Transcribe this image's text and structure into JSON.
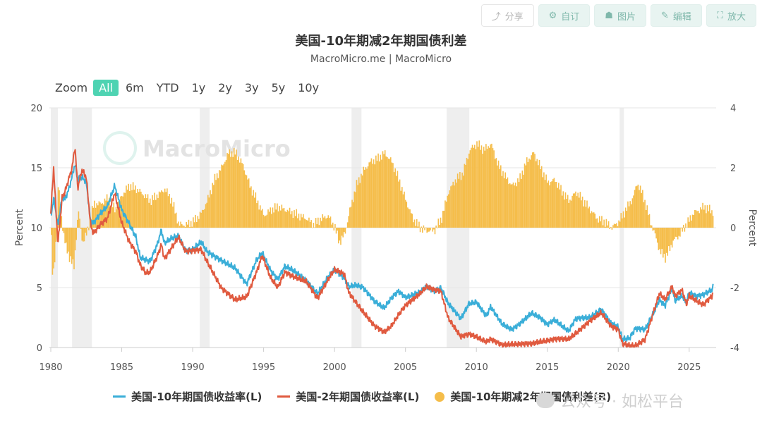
{
  "toolbar": {
    "buttons": [
      {
        "label": "分享",
        "icon": "share-icon"
      },
      {
        "label": "自订",
        "icon": "gear-icon"
      },
      {
        "label": "图片",
        "icon": "user-icon"
      },
      {
        "label": "编辑",
        "icon": "pencil-icon"
      },
      {
        "label": "放大",
        "icon": "expand-icon"
      }
    ]
  },
  "zoom": {
    "label": "Zoom",
    "options": [
      "All",
      "6m",
      "YTD",
      "1y",
      "2y",
      "3y",
      "5y",
      "10y"
    ],
    "active": "All"
  },
  "watermark": {
    "logo_text": "MacroMicro",
    "platform_text": "公众号 · 如松平台"
  },
  "colors": {
    "ten_year": "#3aaed8",
    "two_year": "#e05a3f",
    "spread": "#f5bd4a",
    "recession": "#eeeeee",
    "accent": "#4ed3b2"
  },
  "chart_data": {
    "type": "line",
    "title": "美国-10年期减2年期国债利差",
    "subtitle": "MacroMicro.me | MacroMicro",
    "xlabel": "",
    "ylabel_left": "Percent",
    "ylabel_right": "Percent",
    "xlim": [
      1979.9,
      2026.9
    ],
    "ylim_left": [
      0,
      20
    ],
    "ylim_right": [
      -4,
      4
    ],
    "x_ticks": [
      "1980",
      "1985",
      "1990",
      "1995",
      "2000",
      "2005",
      "2010",
      "2015",
      "2020",
      "2025"
    ],
    "y_ticks_left": [
      "0",
      "5",
      "10",
      "15",
      "20"
    ],
    "y_ticks_right": [
      "-4",
      "-2",
      "0",
      "2",
      "4"
    ],
    "grid": true,
    "legend": "bottom",
    "recessions": [
      [
        1980.0,
        1980.5
      ],
      [
        1981.5,
        1982.9
      ],
      [
        1990.5,
        1991.2
      ],
      [
        2001.2,
        2001.9
      ],
      [
        2007.9,
        2009.5
      ],
      [
        2020.1,
        2020.4
      ]
    ],
    "series": [
      {
        "name": "美国-10年期国债收益率(L)",
        "axis": "left",
        "points": [
          [
            1980.0,
            10.8
          ],
          [
            1980.2,
            12.5
          ],
          [
            1980.5,
            10.2
          ],
          [
            1980.8,
            12.6
          ],
          [
            1981.0,
            12.4
          ],
          [
            1981.3,
            13.3
          ],
          [
            1981.7,
            15.3
          ],
          [
            1981.9,
            14.0
          ],
          [
            1982.2,
            14.2
          ],
          [
            1982.5,
            13.8
          ],
          [
            1982.8,
            10.6
          ],
          [
            1983.0,
            10.4
          ],
          [
            1983.5,
            11.2
          ],
          [
            1984.0,
            11.8
          ],
          [
            1984.5,
            13.5
          ],
          [
            1985.0,
            11.5
          ],
          [
            1985.5,
            10.4
          ],
          [
            1986.0,
            9.2
          ],
          [
            1986.3,
            7.5
          ],
          [
            1986.7,
            7.3
          ],
          [
            1987.0,
            7.2
          ],
          [
            1987.5,
            8.6
          ],
          [
            1987.8,
            9.8
          ],
          [
            1988.0,
            8.7
          ],
          [
            1988.5,
            9.1
          ],
          [
            1989.0,
            9.3
          ],
          [
            1989.5,
            8.1
          ],
          [
            1990.0,
            8.2
          ],
          [
            1990.6,
            8.8
          ],
          [
            1991.0,
            8.0
          ],
          [
            1992.0,
            7.3
          ],
          [
            1993.0,
            6.6
          ],
          [
            1993.8,
            5.3
          ],
          [
            1994.5,
            7.3
          ],
          [
            1994.9,
            7.9
          ],
          [
            1995.5,
            6.4
          ],
          [
            1996.0,
            5.7
          ],
          [
            1996.5,
            6.8
          ],
          [
            1997.0,
            6.5
          ],
          [
            1998.0,
            5.6
          ],
          [
            1998.8,
            4.5
          ],
          [
            1999.5,
            5.8
          ],
          [
            2000.0,
            6.5
          ],
          [
            2000.7,
            5.8
          ],
          [
            2001.0,
            5.1
          ],
          [
            2001.5,
            5.2
          ],
          [
            2002.0,
            5.0
          ],
          [
            2002.8,
            3.9
          ],
          [
            2003.5,
            3.3
          ],
          [
            2004.0,
            4.1
          ],
          [
            2004.5,
            4.7
          ],
          [
            2005.0,
            4.2
          ],
          [
            2006.0,
            4.6
          ],
          [
            2006.5,
            5.1
          ],
          [
            2007.0,
            4.7
          ],
          [
            2007.5,
            5.0
          ],
          [
            2008.0,
            3.7
          ],
          [
            2008.9,
            2.4
          ],
          [
            2009.5,
            3.7
          ],
          [
            2010.0,
            3.8
          ],
          [
            2010.7,
            2.6
          ],
          [
            2011.0,
            3.4
          ],
          [
            2011.8,
            2.0
          ],
          [
            2012.5,
            1.5
          ],
          [
            2013.0,
            1.9
          ],
          [
            2013.9,
            2.9
          ],
          [
            2014.5,
            2.5
          ],
          [
            2015.0,
            1.9
          ],
          [
            2015.5,
            2.3
          ],
          [
            2016.5,
            1.4
          ],
          [
            2017.0,
            2.4
          ],
          [
            2018.0,
            2.5
          ],
          [
            2018.8,
            3.2
          ],
          [
            2019.5,
            2.0
          ],
          [
            2020.0,
            1.7
          ],
          [
            2020.3,
            0.7
          ],
          [
            2020.8,
            0.8
          ],
          [
            2021.2,
            1.6
          ],
          [
            2021.9,
            1.5
          ],
          [
            2022.5,
            2.9
          ],
          [
            2022.9,
            4.0
          ],
          [
            2023.3,
            3.5
          ],
          [
            2023.8,
            4.9
          ],
          [
            2024.0,
            3.9
          ],
          [
            2024.5,
            4.3
          ],
          [
            2024.8,
            3.7
          ],
          [
            2025.0,
            4.6
          ],
          [
            2025.5,
            4.3
          ],
          [
            2026.0,
            4.4
          ],
          [
            2026.6,
            4.8
          ],
          [
            2026.7,
            5.1
          ]
        ]
      },
      {
        "name": "美国-2年期国债收益率(L)",
        "axis": "left",
        "points": [
          [
            1980.0,
            11.2
          ],
          [
            1980.2,
            15.0
          ],
          [
            1980.5,
            8.6
          ],
          [
            1980.8,
            12.5
          ],
          [
            1981.0,
            13.0
          ],
          [
            1981.5,
            15.0
          ],
          [
            1981.7,
            16.8
          ],
          [
            1981.9,
            13.3
          ],
          [
            1982.2,
            14.8
          ],
          [
            1982.5,
            14.2
          ],
          [
            1982.8,
            10.3
          ],
          [
            1983.0,
            9.5
          ],
          [
            1983.5,
            10.3
          ],
          [
            1984.0,
            10.8
          ],
          [
            1984.5,
            12.9
          ],
          [
            1985.0,
            10.4
          ],
          [
            1985.5,
            8.9
          ],
          [
            1986.0,
            8.0
          ],
          [
            1986.3,
            6.9
          ],
          [
            1986.7,
            6.2
          ],
          [
            1987.0,
            6.3
          ],
          [
            1987.5,
            7.6
          ],
          [
            1987.8,
            8.6
          ],
          [
            1988.0,
            7.4
          ],
          [
            1988.5,
            8.3
          ],
          [
            1989.0,
            9.2
          ],
          [
            1989.5,
            8.0
          ],
          [
            1990.0,
            8.1
          ],
          [
            1990.6,
            8.2
          ],
          [
            1991.0,
            7.2
          ],
          [
            1992.0,
            5.0
          ],
          [
            1993.0,
            4.0
          ],
          [
            1993.8,
            4.2
          ],
          [
            1994.5,
            6.3
          ],
          [
            1994.9,
            7.7
          ],
          [
            1995.5,
            5.8
          ],
          [
            1996.0,
            5.0
          ],
          [
            1996.5,
            6.3
          ],
          [
            1997.0,
            6.0
          ],
          [
            1998.0,
            5.5
          ],
          [
            1998.8,
            4.1
          ],
          [
            1999.5,
            5.6
          ],
          [
            2000.0,
            6.5
          ],
          [
            2000.7,
            6.1
          ],
          [
            2001.0,
            4.6
          ],
          [
            2001.5,
            3.8
          ],
          [
            2002.0,
            3.0
          ],
          [
            2002.8,
            1.8
          ],
          [
            2003.5,
            1.3
          ],
          [
            2004.0,
            1.8
          ],
          [
            2004.5,
            2.7
          ],
          [
            2005.0,
            3.5
          ],
          [
            2006.0,
            4.5
          ],
          [
            2006.5,
            5.1
          ],
          [
            2007.0,
            4.8
          ],
          [
            2007.5,
            4.7
          ],
          [
            2008.0,
            2.5
          ],
          [
            2008.9,
            0.9
          ],
          [
            2009.5,
            1.1
          ],
          [
            2010.0,
            0.9
          ],
          [
            2010.7,
            0.5
          ],
          [
            2011.0,
            0.7
          ],
          [
            2011.8,
            0.2
          ],
          [
            2012.5,
            0.3
          ],
          [
            2013.0,
            0.3
          ],
          [
            2013.9,
            0.3
          ],
          [
            2014.5,
            0.5
          ],
          [
            2015.0,
            0.6
          ],
          [
            2015.5,
            0.7
          ],
          [
            2016.5,
            0.7
          ],
          [
            2017.0,
            1.2
          ],
          [
            2018.0,
            2.2
          ],
          [
            2018.8,
            2.9
          ],
          [
            2019.5,
            1.8
          ],
          [
            2020.0,
            1.5
          ],
          [
            2020.3,
            0.3
          ],
          [
            2020.8,
            0.15
          ],
          [
            2021.2,
            0.15
          ],
          [
            2021.9,
            0.7
          ],
          [
            2022.5,
            3.0
          ],
          [
            2022.9,
            4.5
          ],
          [
            2023.3,
            4.0
          ],
          [
            2023.8,
            5.1
          ],
          [
            2024.0,
            4.3
          ],
          [
            2024.5,
            4.8
          ],
          [
            2024.8,
            3.6
          ],
          [
            2025.0,
            4.3
          ],
          [
            2025.5,
            3.9
          ],
          [
            2026.0,
            3.6
          ],
          [
            2026.6,
            4.3
          ],
          [
            2026.7,
            4.6
          ]
        ]
      },
      {
        "name": "美国-10年期减2年期国债利差(R)",
        "axis": "right",
        "type": "bar",
        "points": [
          [
            1980.0,
            -0.4
          ],
          [
            1980.1,
            -1.8
          ],
          [
            1980.3,
            -0.7
          ],
          [
            1980.5,
            1.5
          ],
          [
            1980.8,
            0.0
          ],
          [
            1981.0,
            -0.6
          ],
          [
            1981.3,
            -1.0
          ],
          [
            1981.6,
            -1.3
          ],
          [
            1981.9,
            0.6
          ],
          [
            1982.2,
            -0.5
          ],
          [
            1982.5,
            -0.2
          ],
          [
            1982.8,
            0.4
          ],
          [
            1983.0,
            0.8
          ],
          [
            1983.5,
            0.8
          ],
          [
            1984.0,
            1.0
          ],
          [
            1984.5,
            0.6
          ],
          [
            1985.0,
            1.1
          ],
          [
            1985.5,
            1.4
          ],
          [
            1986.0,
            1.3
          ],
          [
            1986.5,
            1.1
          ],
          [
            1987.0,
            0.9
          ],
          [
            1987.5,
            1.1
          ],
          [
            1987.8,
            1.2
          ],
          [
            1988.0,
            1.3
          ],
          [
            1988.5,
            0.9
          ],
          [
            1989.0,
            0.1
          ],
          [
            1989.5,
            0.1
          ],
          [
            1990.0,
            0.2
          ],
          [
            1990.6,
            0.5
          ],
          [
            1991.0,
            0.9
          ],
          [
            1991.5,
            1.6
          ],
          [
            1992.0,
            2.0
          ],
          [
            1992.5,
            2.5
          ],
          [
            1993.0,
            2.5
          ],
          [
            1993.5,
            2.1
          ],
          [
            1994.0,
            1.4
          ],
          [
            1994.5,
            0.9
          ],
          [
            1995.0,
            0.4
          ],
          [
            1995.5,
            0.6
          ],
          [
            1996.0,
            0.7
          ],
          [
            1996.5,
            0.6
          ],
          [
            1997.0,
            0.5
          ],
          [
            1998.0,
            0.3
          ],
          [
            1998.5,
            0.1
          ],
          [
            1999.0,
            0.3
          ],
          [
            1999.5,
            0.4
          ],
          [
            2000.0,
            0.0
          ],
          [
            2000.3,
            -0.5
          ],
          [
            2000.7,
            -0.2
          ],
          [
            2001.0,
            0.5
          ],
          [
            2001.5,
            1.4
          ],
          [
            2002.0,
            1.9
          ],
          [
            2002.5,
            2.2
          ],
          [
            2003.0,
            2.3
          ],
          [
            2003.5,
            2.5
          ],
          [
            2004.0,
            2.2
          ],
          [
            2004.5,
            1.6
          ],
          [
            2005.0,
            0.9
          ],
          [
            2005.5,
            0.3
          ],
          [
            2006.0,
            0.0
          ],
          [
            2006.5,
            -0.1
          ],
          [
            2007.0,
            -0.1
          ],
          [
            2007.5,
            0.3
          ],
          [
            2008.0,
            1.2
          ],
          [
            2008.5,
            1.6
          ],
          [
            2009.0,
            1.8
          ],
          [
            2009.5,
            2.6
          ],
          [
            2010.0,
            2.8
          ],
          [
            2010.5,
            2.6
          ],
          [
            2011.0,
            2.8
          ],
          [
            2011.5,
            2.1
          ],
          [
            2012.0,
            1.7
          ],
          [
            2012.5,
            1.4
          ],
          [
            2013.0,
            1.6
          ],
          [
            2013.5,
            2.2
          ],
          [
            2014.0,
            2.5
          ],
          [
            2014.5,
            2.0
          ],
          [
            2015.0,
            1.5
          ],
          [
            2015.5,
            1.6
          ],
          [
            2016.0,
            1.2
          ],
          [
            2016.5,
            0.9
          ],
          [
            2017.0,
            1.2
          ],
          [
            2017.5,
            0.9
          ],
          [
            2018.0,
            0.6
          ],
          [
            2018.5,
            0.3
          ],
          [
            2019.0,
            0.2
          ],
          [
            2019.5,
            0.0
          ],
          [
            2020.0,
            0.2
          ],
          [
            2020.5,
            0.6
          ],
          [
            2021.0,
            1.0
          ],
          [
            2021.3,
            1.5
          ],
          [
            2021.7,
            1.1
          ],
          [
            2022.0,
            0.6
          ],
          [
            2022.3,
            0.1
          ],
          [
            2022.6,
            -0.3
          ],
          [
            2022.9,
            -0.8
          ],
          [
            2023.3,
            -1.0
          ],
          [
            2023.6,
            -0.7
          ],
          [
            2023.9,
            -0.4
          ],
          [
            2024.2,
            -0.3
          ],
          [
            2024.6,
            0.0
          ],
          [
            2024.9,
            0.2
          ],
          [
            2025.3,
            0.5
          ],
          [
            2025.7,
            0.6
          ],
          [
            2026.0,
            0.7
          ],
          [
            2026.4,
            0.6
          ],
          [
            2026.7,
            0.5
          ]
        ]
      }
    ]
  }
}
